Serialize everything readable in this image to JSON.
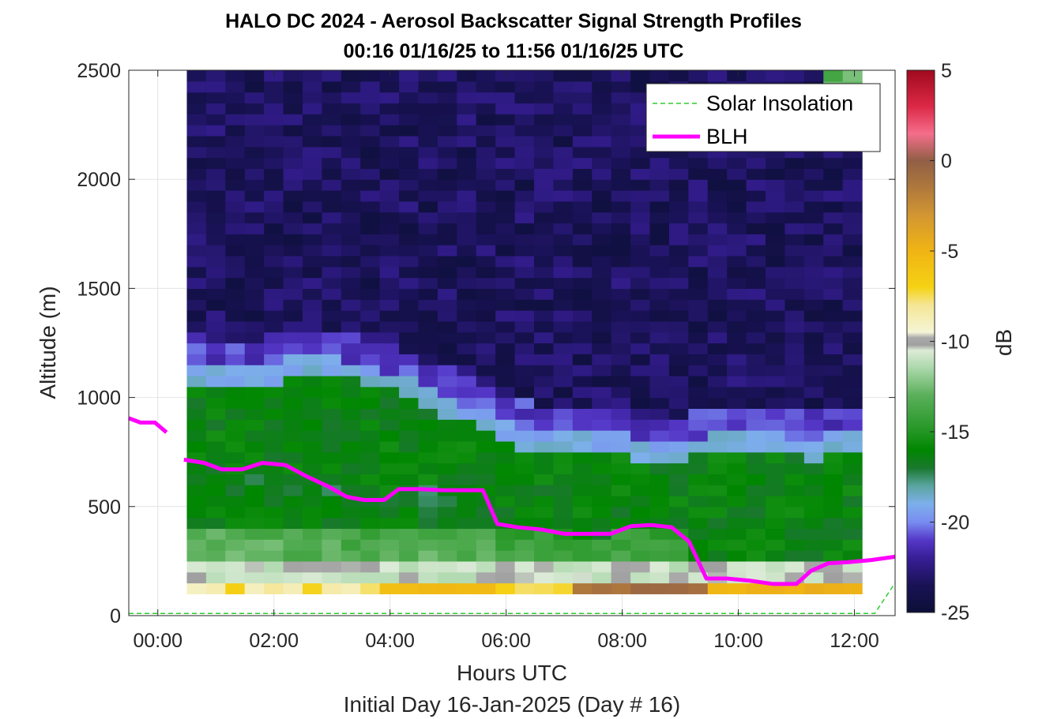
{
  "chart_data": {
    "type": "heatmap",
    "title": "HALO DC 2024 - Aerosol Backscatter Signal Strength Profiles",
    "subtitle": "00:16 01/16/25 to 11:56 01/16/25  UTC",
    "xlabel": "Hours UTC",
    "xlabel2": "Initial Day 16-Jan-2025 (Day # 16)",
    "ylabel": "Altitude (m)",
    "colorbar_label": "dB",
    "xlim": [
      -0.5,
      12.7
    ],
    "ylim": [
      0,
      2500
    ],
    "clim": [
      -25,
      5
    ],
    "x_ticks": [
      "00:00",
      "02:00",
      "04:00",
      "06:00",
      "08:00",
      "10:00",
      "12:00"
    ],
    "y_ticks": [
      "0",
      "500",
      "1000",
      "1500",
      "2000",
      "2500"
    ],
    "colorbar_ticks": [
      "-25",
      "-20",
      "-15",
      "-10",
      "-5",
      "0",
      "5"
    ],
    "grid": true,
    "legend_position": "top-right",
    "legend": [
      {
        "label": "Solar Insolation",
        "color": "#2ecc2e",
        "style": "dashed"
      },
      {
        "label": "BLH",
        "color": "#ff00ff",
        "style": "solid"
      }
    ],
    "heatmap": {
      "time_start": 0.5,
      "time_end": 12.13,
      "columns": 35,
      "alt_bottom": 100,
      "alt_top": 2500,
      "alt_bin": 50,
      "value_unit": "dB",
      "summary_profiles": [
        {
          "altitude": 2000,
          "value": -23.5
        },
        {
          "altitude": 1500,
          "value": -23.0
        },
        {
          "altitude": 1000,
          "value": -17.0
        },
        {
          "altitude": 500,
          "value": -13.0
        },
        {
          "altitude": 150,
          "value": -8.0
        }
      ]
    },
    "series": [
      {
        "name": "BLH",
        "color": "#ff00ff",
        "segments": [
          {
            "x": [
              -0.5,
              -0.3,
              -0.05,
              0.15
            ],
            "y": [
              905,
              885,
              885,
              840
            ]
          },
          {
            "x": [
              0.45,
              0.8,
              1.1,
              1.45,
              1.8,
              2.2,
              2.55,
              2.95,
              3.25,
              3.55,
              3.9,
              4.15,
              4.5,
              4.9,
              5.3,
              5.6,
              5.85,
              6.2,
              6.6,
              7.0,
              7.4,
              7.8,
              8.15,
              8.5,
              8.85,
              9.15,
              9.45,
              9.8,
              10.2,
              10.6,
              11.0,
              11.25,
              11.55,
              11.9,
              12.3,
              12.7
            ],
            "y": [
              715,
              700,
              670,
              670,
              700,
              690,
              640,
              590,
              545,
              530,
              530,
              580,
              580,
              575,
              575,
              575,
              420,
              405,
              395,
              375,
              375,
              375,
              410,
              415,
              405,
              340,
              170,
              170,
              160,
              145,
              145,
              205,
              240,
              245,
              255,
              270
            ]
          }
        ]
      },
      {
        "name": "Solar Insolation",
        "color": "#2ecc2e",
        "x": [
          -0.5,
          12.35,
          12.7
        ],
        "y": [
          10,
          10,
          150
        ]
      }
    ]
  }
}
